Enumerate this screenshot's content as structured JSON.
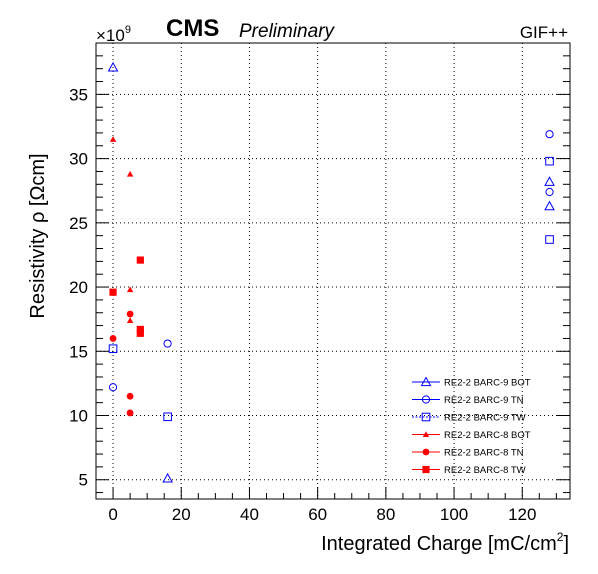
{
  "chart_data": {
    "type": "scatter",
    "brand": "CMS",
    "status": "Preliminary",
    "facility": "GIF++",
    "xlabel": "Integrated Charge [mC/cm",
    "xlabel_sup": "2",
    "xlabel_end": "]",
    "ylabel": "Resistivity ρ [Ωcm]",
    "y_multiplier_base": "×10",
    "y_multiplier_exp": "9",
    "xlim": [
      -5,
      134
    ],
    "ylim": [
      3.5,
      39
    ],
    "xticks": [
      0,
      20,
      40,
      60,
      80,
      100,
      120
    ],
    "yticks": [
      5,
      10,
      15,
      20,
      25,
      30,
      35
    ],
    "x_minor_step": 5,
    "y_minor_step": 1,
    "grid": true,
    "legend_position": "bottom-right",
    "series": [
      {
        "name": "RE2-2 BARC-9 BOT",
        "marker": "triangle-open",
        "color": "#0000ff",
        "points": [
          [
            0,
            37.1
          ],
          [
            16,
            5.1
          ],
          [
            128,
            28.2
          ],
          [
            128,
            26.3
          ]
        ]
      },
      {
        "name": "RE2-2 BARC-9 TN",
        "marker": "circle-open",
        "color": "#0000ff",
        "points": [
          [
            0,
            12.2
          ],
          [
            16,
            15.6
          ],
          [
            128,
            31.9
          ],
          [
            128,
            27.4
          ]
        ]
      },
      {
        "name": "RE2-2 BARC-9 TW",
        "marker": "square-open",
        "color": "#0000ff",
        "points": [
          [
            0,
            15.2
          ],
          [
            16,
            9.9
          ],
          [
            128,
            29.8
          ],
          [
            128,
            23.7
          ]
        ]
      },
      {
        "name": "RE2-2 BARC-8 BOT",
        "marker": "triangle-filled",
        "color": "#ff0000",
        "points": [
          [
            0,
            31.5
          ],
          [
            5,
            28.8
          ],
          [
            5,
            19.8
          ],
          [
            5,
            17.4
          ]
        ]
      },
      {
        "name": "RE2-2 BARC-8 TN",
        "marker": "circle-filled",
        "color": "#ff0000",
        "points": [
          [
            0,
            16.0
          ],
          [
            5,
            17.9
          ],
          [
            5,
            11.5
          ],
          [
            5,
            10.2
          ]
        ]
      },
      {
        "name": "RE2-2 BARC-8 TW",
        "marker": "square-filled",
        "color": "#ff0000",
        "points": [
          [
            0,
            19.6
          ],
          [
            8,
            22.1
          ],
          [
            8,
            16.7
          ],
          [
            8,
            16.4
          ]
        ]
      }
    ]
  }
}
